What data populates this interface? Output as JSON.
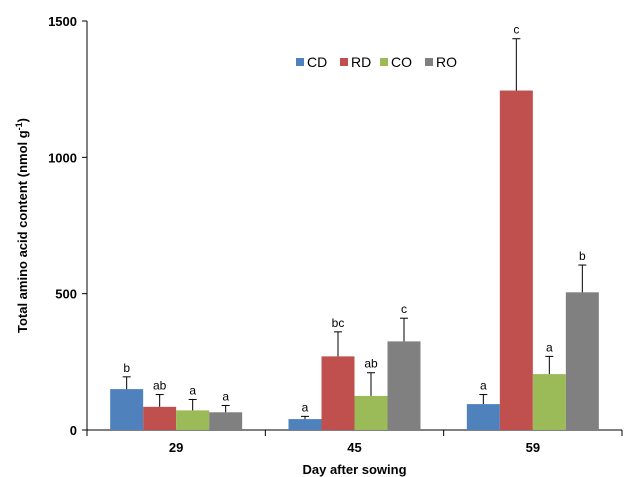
{
  "chart_data": {
    "type": "bar",
    "xlabel": "Day after sowing",
    "ylabel": "Total amino acid content (nmol g",
    "ylabel_sup": "-1",
    "ylabel_close": ")",
    "ylim": [
      0,
      1500
    ],
    "yticks": [
      "0",
      "500",
      "1000",
      "1500"
    ],
    "ytick_values": [
      0,
      500,
      1000,
      1500
    ],
    "categories": [
      "29",
      "45",
      "59"
    ],
    "legend_position": "top-center",
    "series": [
      {
        "name": "CD",
        "color": "#4F81BD",
        "values": [
          150,
          40,
          95
        ],
        "errors": [
          45,
          10,
          35
        ],
        "labels": [
          "b",
          "a",
          "a"
        ]
      },
      {
        "name": "RD",
        "color": "#C0504D",
        "values": [
          85,
          270,
          1245
        ],
        "errors": [
          45,
          90,
          190
        ],
        "labels": [
          "ab",
          "bc",
          "c"
        ]
      },
      {
        "name": "CO",
        "color": "#9BBB59",
        "values": [
          72,
          125,
          205
        ],
        "errors": [
          40,
          85,
          65
        ],
        "labels": [
          "a",
          "ab",
          "a"
        ]
      },
      {
        "name": "RO",
        "color": "#808080",
        "values": [
          65,
          325,
          505
        ],
        "errors": [
          25,
          85,
          100
        ],
        "labels": [
          "a",
          "c",
          "b"
        ]
      }
    ]
  }
}
